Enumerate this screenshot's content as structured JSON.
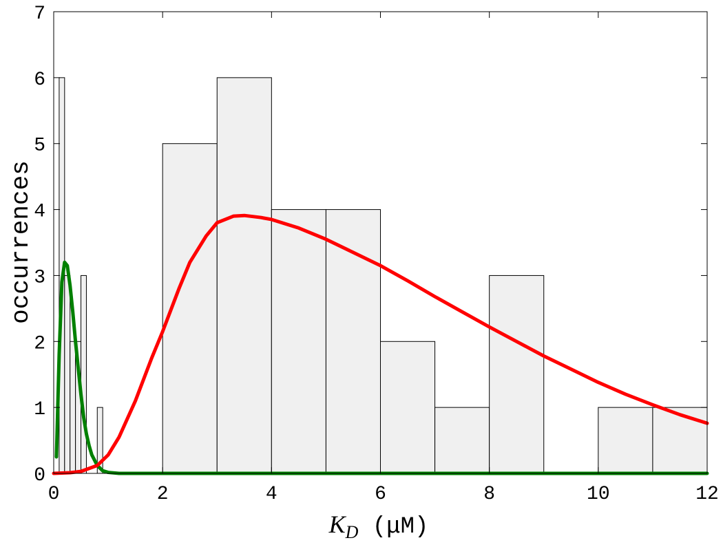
{
  "chart_data": {
    "type": "bar",
    "xlabel": {
      "symbol": "K",
      "subscript": "D",
      "unit": " (μM)"
    },
    "ylabel": "occurrences",
    "xlim": [
      0,
      12
    ],
    "ylim": [
      0,
      7
    ],
    "xticks": [
      0,
      2,
      4,
      6,
      8,
      10,
      12
    ],
    "yticks": [
      0,
      1,
      2,
      3,
      4,
      5,
      6,
      7
    ],
    "grid": false,
    "histogram_narrow": {
      "bin_width": 0.1,
      "bins": [
        {
          "x0": 0.1,
          "x1": 0.2,
          "count": 6
        },
        {
          "x0": 0.2,
          "x1": 0.3,
          "count": 3
        },
        {
          "x0": 0.3,
          "x1": 0.4,
          "count": 2
        },
        {
          "x0": 0.4,
          "x1": 0.5,
          "count": 2
        },
        {
          "x0": 0.5,
          "x1": 0.6,
          "count": 3
        },
        {
          "x0": 0.8,
          "x1": 0.9,
          "count": 1
        }
      ]
    },
    "histogram_wide": {
      "bin_width": 1,
      "bins": [
        {
          "x0": 2,
          "x1": 3,
          "count": 5
        },
        {
          "x0": 3,
          "x1": 4,
          "count": 6
        },
        {
          "x0": 4,
          "x1": 5,
          "count": 4
        },
        {
          "x0": 5,
          "x1": 6,
          "count": 4
        },
        {
          "x0": 6,
          "x1": 7,
          "count": 2
        },
        {
          "x0": 7,
          "x1": 8,
          "count": 1
        },
        {
          "x0": 8,
          "x1": 9,
          "count": 3
        },
        {
          "x0": 10,
          "x1": 11,
          "count": 1
        },
        {
          "x0": 11,
          "x1": 12,
          "count": 1
        }
      ]
    },
    "curves": [
      {
        "color": "#008000",
        "x": [
          0.05,
          0.1,
          0.15,
          0.2,
          0.25,
          0.3,
          0.35,
          0.4,
          0.45,
          0.5,
          0.55,
          0.6,
          0.65,
          0.7,
          0.8,
          0.9,
          1.0,
          1.2,
          1.5,
          2,
          4,
          6,
          8,
          10,
          12
        ],
        "y": [
          0.25,
          1.8,
          2.9,
          3.2,
          3.15,
          2.85,
          2.45,
          2.0,
          1.6,
          1.2,
          0.85,
          0.6,
          0.42,
          0.28,
          0.12,
          0.04,
          0.015,
          0.0,
          0.0,
          0.0,
          0.0,
          0.0,
          0.0,
          0.0,
          0.0
        ]
      },
      {
        "color": "#ff0000",
        "x": [
          0,
          0.3,
          0.5,
          0.8,
          1.0,
          1.2,
          1.5,
          1.8,
          2.0,
          2.3,
          2.5,
          2.8,
          3.0,
          3.3,
          3.5,
          3.8,
          4.0,
          4.5,
          5.0,
          5.5,
          6.0,
          6.5,
          7.0,
          7.5,
          8.0,
          8.5,
          9.0,
          9.5,
          10.0,
          10.5,
          11.0,
          11.5,
          12.0
        ],
        "y": [
          0.0,
          0.01,
          0.03,
          0.12,
          0.28,
          0.55,
          1.1,
          1.75,
          2.15,
          2.8,
          3.2,
          3.6,
          3.8,
          3.9,
          3.91,
          3.88,
          3.85,
          3.72,
          3.55,
          3.35,
          3.15,
          2.92,
          2.68,
          2.45,
          2.22,
          2.0,
          1.78,
          1.58,
          1.38,
          1.2,
          1.04,
          0.89,
          0.76
        ]
      }
    ]
  }
}
